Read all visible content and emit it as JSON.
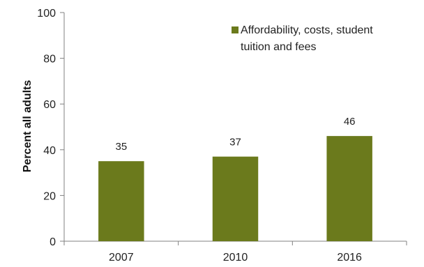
{
  "chart_data": {
    "type": "bar",
    "title": "",
    "xlabel": "",
    "ylabel": "Percent all adults",
    "ylim": [
      0,
      100
    ],
    "yticks": [
      0,
      20,
      40,
      60,
      80,
      100
    ],
    "categories": [
      "2007",
      "2010",
      "2016"
    ],
    "series": [
      {
        "name": "Affordability, costs, student tuition and fees",
        "values": [
          35,
          37,
          46
        ],
        "color": "#6b7a1c"
      }
    ],
    "legend": {
      "position": "top-right",
      "lines": [
        "Affordability, costs, student",
        "tuition and fees"
      ]
    },
    "grid": false
  }
}
